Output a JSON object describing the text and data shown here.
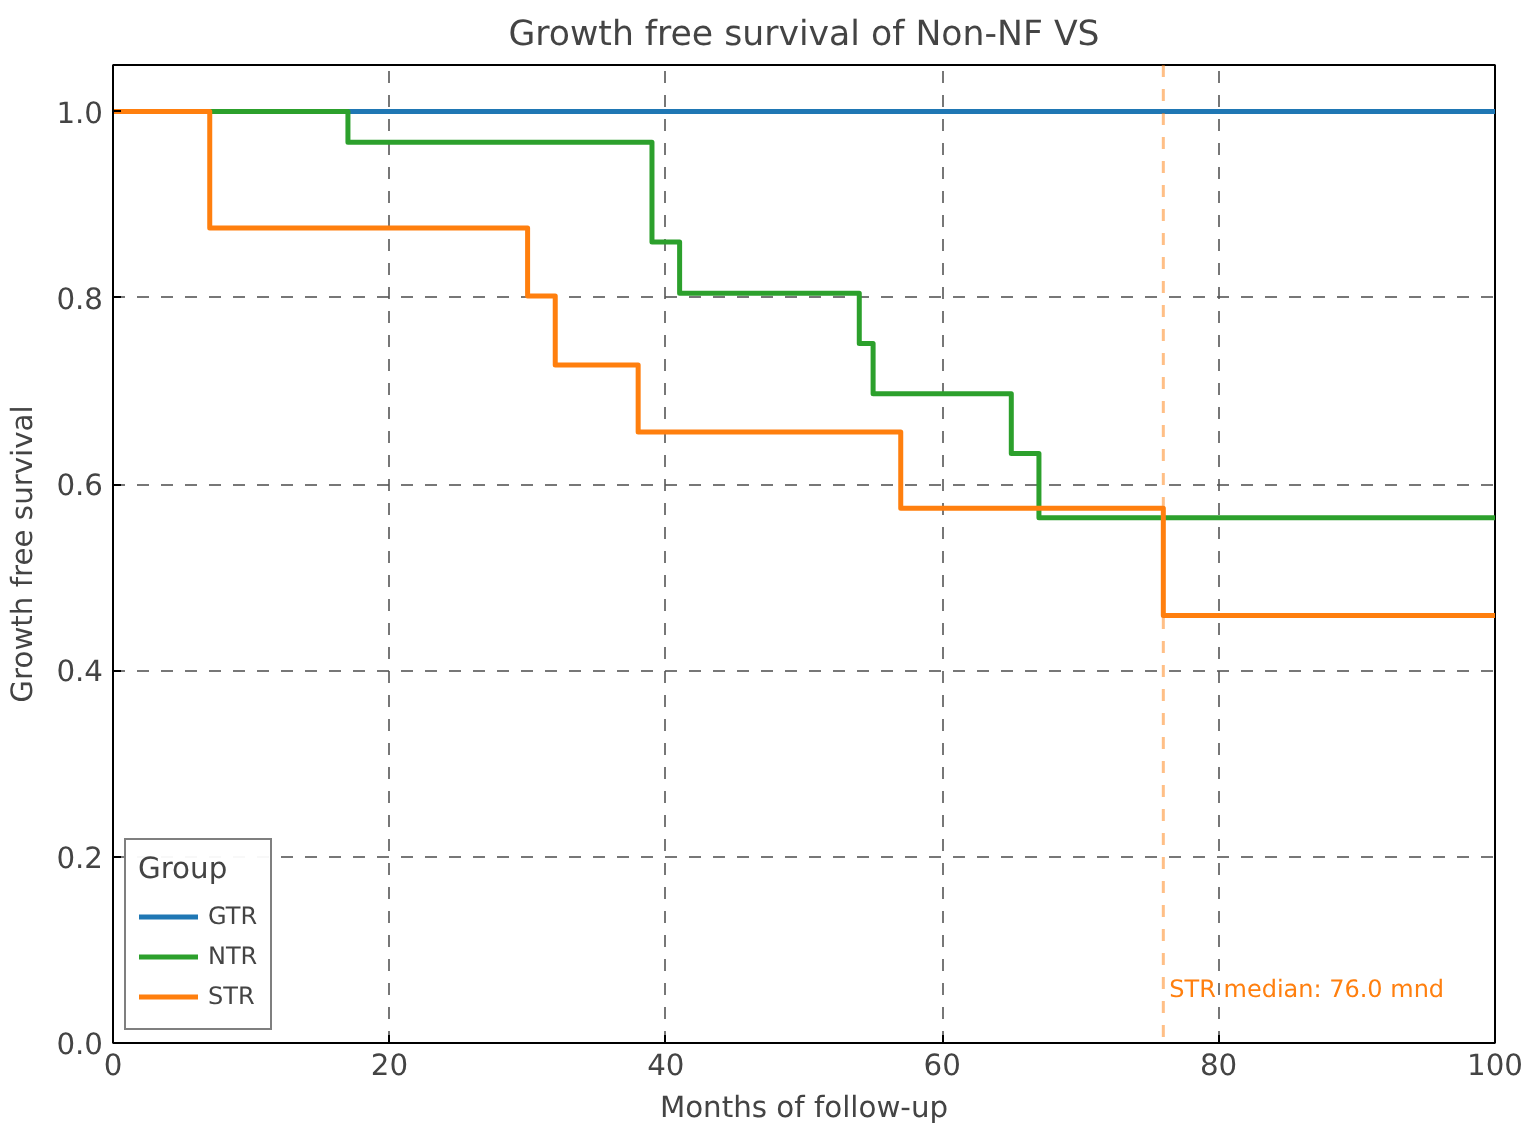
{
  "chart_data": {
    "type": "step",
    "title": "Growth free survival of Non-NF VS",
    "xlabel": "Months of follow-up",
    "ylabel": "Growth free survival",
    "xlim": [
      0,
      100
    ],
    "ylim": [
      0,
      1.05
    ],
    "xticks": [
      0,
      20,
      40,
      60,
      80,
      100
    ],
    "yticks": [
      {
        "value": 0,
        "label": "0.0"
      },
      0.2,
      0.4,
      0.6,
      0.8,
      {
        "value": 1,
        "label": "1.0"
      }
    ],
    "grid": true,
    "legend": "bottom left",
    "legend_title": "Group",
    "line_style": "solid",
    "marker": "none",
    "series": [
      {
        "name": "GTR",
        "color": "#1f77b4",
        "x": [
          0,
          100
        ],
        "values": [
          1,
          1
        ]
      },
      {
        "name": "NTR",
        "color": "#2ca02c",
        "x": [
          0,
          17,
          39,
          41,
          54,
          55,
          65,
          67,
          100
        ],
        "values": [
          1,
          0.967,
          0.86,
          0.805,
          0.751,
          0.697,
          0.633,
          0.564,
          0.564
        ]
      },
      {
        "name": "STR",
        "color": "#ff7f0e",
        "x": [
          0,
          7,
          30,
          32,
          38,
          57,
          76,
          100
        ],
        "values": [
          1,
          0.875,
          0.802,
          0.728,
          0.656,
          0.574,
          0.459,
          0.459
        ]
      }
    ],
    "ref_lines": [
      {
        "axis": "x",
        "value": 76,
        "label": "STR median: 76.0 mnd",
        "color": "#ff7f0e",
        "line_style": "dashed"
      }
    ]
  }
}
